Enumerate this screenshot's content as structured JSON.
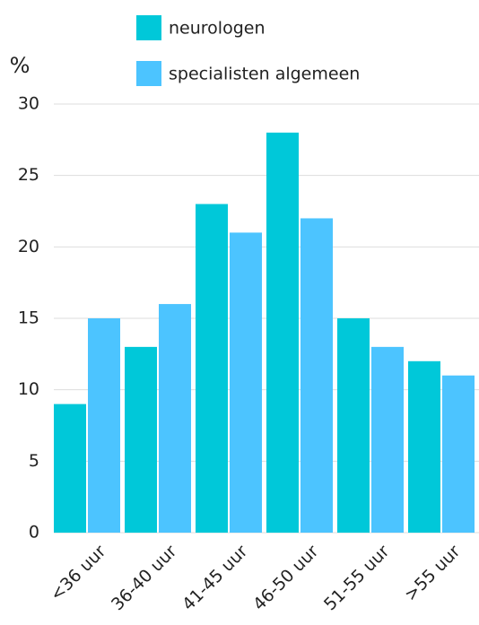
{
  "chart_data": {
    "type": "bar",
    "ylabel": "%",
    "categories": [
      "<36 uur",
      "36-40 uur",
      "41-45 uur",
      "46-50 uur",
      "51-55 uur",
      ">55 uur"
    ],
    "series": [
      {
        "name": "neurologen",
        "color": "#00c8d9",
        "values": [
          9,
          13,
          23,
          28,
          15,
          12
        ]
      },
      {
        "name": "specialisten algemeen",
        "color": "#4cc4ff",
        "values": [
          15,
          16,
          21,
          22,
          13,
          11
        ]
      }
    ],
    "ylim": [
      0,
      30
    ],
    "yticks": [
      0,
      5,
      10,
      15,
      20,
      25,
      30
    ],
    "grid": true,
    "legend": "top"
  }
}
